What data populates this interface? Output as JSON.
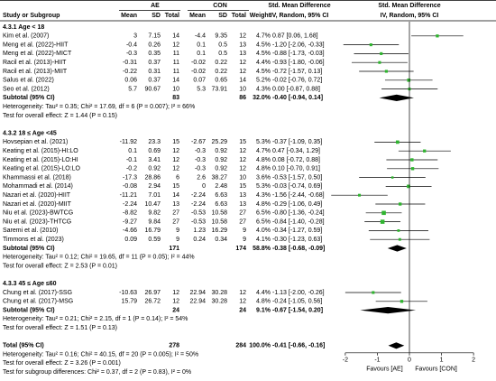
{
  "chart_data": {
    "type": "forest",
    "header": {
      "ae": "AE",
      "con": "CON",
      "effect_title": "Std. Mean Difference",
      "plot_title": "Std. Mean Difference",
      "study": "Study or Subgroup",
      "mean_ae": "Mean",
      "sd_ae": "SD",
      "total_ae": "Total",
      "mean_con": "Mean",
      "sd_con": "SD",
      "total_con": "Total",
      "weight": "Weight",
      "effect_method": "IV, Random, 95% CI",
      "plot_method": "IV, Random, 95% CI"
    },
    "xlim": [
      -2.7,
      2.7
    ],
    "xticks": [
      -2,
      -1,
      0,
      1,
      2
    ],
    "favours_left": "Favours [AE]",
    "favours_right": "Favours [CON]",
    "marker_color": "#2fb52f",
    "diamond_color": "#000000",
    "subgroups": [
      {
        "title": "4.3.1 Age < 18",
        "studies": [
          {
            "name": "Kim et al. (2007)",
            "ae": [
              3,
              7.15,
              14
            ],
            "con": [
              -4.4,
              9.35,
              12
            ],
            "weight": 4.7,
            "weight_label": "4.7%",
            "smd": 0.87,
            "ci": [
              0.06,
              1.68
            ],
            "ci_label": "0.87 [0.06, 1.68]"
          },
          {
            "name": "Meng et al. (2022)-HIIT",
            "ae": [
              -0.4,
              0.26,
              12
            ],
            "con": [
              0.1,
              0.5,
              13
            ],
            "weight": 4.5,
            "weight_label": "4.5%",
            "smd": -1.2,
            "ci": [
              -2.06,
              -0.33
            ],
            "ci_label": "-1.20 [-2.06, -0.33]"
          },
          {
            "name": "Meng et al. (2022)-MICT",
            "ae": [
              -0.3,
              0.35,
              11
            ],
            "con": [
              0.1,
              0.5,
              13
            ],
            "weight": 4.5,
            "weight_label": "4.5%",
            "smd": -0.88,
            "ci": [
              -1.73,
              -0.03
            ],
            "ci_label": "-0.88 [-1.73, -0.03]"
          },
          {
            "name": "Racil et al. (2013)-HIIT",
            "ae": [
              -0.31,
              0.37,
              11
            ],
            "con": [
              -0.02,
              0.22,
              12
            ],
            "weight": 4.4,
            "weight_label": "4.4%",
            "smd": -0.93,
            "ci": [
              -1.8,
              -0.06
            ],
            "ci_label": "-0.93 [-1.80, -0.06]"
          },
          {
            "name": "Racil et al. (2013)-MIIT",
            "ae": [
              -0.22,
              0.31,
              11
            ],
            "con": [
              -0.02,
              0.22,
              12
            ],
            "weight": 4.5,
            "weight_label": "4.5%",
            "smd": -0.72,
            "ci": [
              -1.57,
              0.13
            ],
            "ci_label": "-0.72 [-1.57, 0.13]"
          },
          {
            "name": "Salus et al. (2022)",
            "ae": [
              0.06,
              0.37,
              14
            ],
            "con": [
              0.07,
              0.65,
              14
            ],
            "weight": 5.2,
            "weight_label": "5.2%",
            "smd": -0.02,
            "ci": [
              -0.76,
              0.72
            ],
            "ci_label": "-0.02 [-0.76, 0.72]"
          },
          {
            "name": "Seo et al. (2012)",
            "ae": [
              5.7,
              90.67,
              10
            ],
            "con": [
              5.3,
              73.91,
              10
            ],
            "weight": 4.3,
            "weight_label": "4.3%",
            "smd": 0.0,
            "ci": [
              -0.87,
              0.88
            ],
            "ci_label": "0.00 [-0.87, 0.88]"
          }
        ],
        "subtotal": {
          "label": "Subtotal (95% CI)",
          "ae_total": 83,
          "con_total": 86,
          "weight_label": "32.0%",
          "smd": -0.4,
          "ci": [
            -0.94,
            0.14
          ],
          "ci_label": "-0.40 [-0.94, 0.14]"
        },
        "heterogeneity": "Heterogeneity: Tau² = 0.35; Chi² = 17.69, df = 6 (P = 0.007); I² = 66%",
        "overall": "Test for overall effect: Z = 1.44 (P = 0.15)"
      },
      {
        "title": "4.3.2 18 ≤ Age <45",
        "studies": [
          {
            "name": "Hovsepian et al. (2021)",
            "ae": [
              -11.92,
              23.3,
              15
            ],
            "con": [
              -2.67,
              25.29,
              15
            ],
            "weight": 5.3,
            "weight_label": "5.3%",
            "smd": -0.37,
            "ci": [
              -1.09,
              0.35
            ],
            "ci_label": "-0.37 [-1.09, 0.35]"
          },
          {
            "name": "Keating et al. (2015)-HI:LO",
            "ae": [
              0.1,
              0.69,
              12
            ],
            "con": [
              -0.3,
              0.92,
              12
            ],
            "weight": 4.7,
            "weight_label": "4.7%",
            "smd": 0.47,
            "ci": [
              -0.34,
              1.29
            ],
            "ci_label": "0.47 [-0.34, 1.29]"
          },
          {
            "name": "Keating et al. (2015)-LO:HI",
            "ae": [
              -0.1,
              3.41,
              12
            ],
            "con": [
              -0.3,
              0.92,
              12
            ],
            "weight": 4.8,
            "weight_label": "4.8%",
            "smd": 0.08,
            "ci": [
              -0.72,
              0.88
            ],
            "ci_label": "0.08 [-0.72, 0.88]"
          },
          {
            "name": "Keating et al. (2015)-LO:LO",
            "ae": [
              -0.2,
              0.92,
              12
            ],
            "con": [
              -0.3,
              0.92,
              12
            ],
            "weight": 4.8,
            "weight_label": "4.8%",
            "smd": 0.1,
            "ci": [
              -0.7,
              0.91
            ],
            "ci_label": "0.10 [-0.70, 0.91]"
          },
          {
            "name": "Khammassi et al. (2018)",
            "ae": [
              -17.3,
              28.86,
              6
            ],
            "con": [
              2.6,
              38.27,
              10
            ],
            "weight": 3.6,
            "weight_label": "3.6%",
            "smd": -0.53,
            "ci": [
              -1.57,
              0.5
            ],
            "ci_label": "-0.53 [-1.57, 0.50]"
          },
          {
            "name": "Mohammadi et al. (2014)",
            "ae": [
              -0.08,
              2.94,
              15
            ],
            "con": [
              0,
              2.48,
              15
            ],
            "weight": 5.3,
            "weight_label": "5.3%",
            "smd": -0.03,
            "ci": [
              -0.74,
              0.69
            ],
            "ci_label": "-0.03 [-0.74, 0.69]"
          },
          {
            "name": "Nazari et al. (2020)-HIIT",
            "ae": [
              -11.21,
              7.01,
              14
            ],
            "con": [
              -2.24,
              6.63,
              13
            ],
            "weight": 4.3,
            "weight_label": "4.3%",
            "smd": -1.56,
            "ci": [
              -2.44,
              -0.68
            ],
            "ci_label": "-1.56 [-2.44, -0.68]"
          },
          {
            "name": "Nazari et al. (2020)-MIIT",
            "ae": [
              -2.24,
              10.47,
              13
            ],
            "con": [
              -2.24,
              6.63,
              13
            ],
            "weight": 4.8,
            "weight_label": "4.8%",
            "smd": -0.29,
            "ci": [
              -1.06,
              0.49
            ],
            "ci_label": "-0.29 [-1.06, 0.49]"
          },
          {
            "name": "Niu et al. (2023)-BWTCG",
            "ae": [
              -8.82,
              9.82,
              27
            ],
            "con": [
              -0.53,
              10.58,
              27
            ],
            "weight": 6.5,
            "weight_label": "6.5%",
            "smd": -0.8,
            "ci": [
              -1.36,
              -0.24
            ],
            "ci_label": "-0.80 [-1.36, -0.24]"
          },
          {
            "name": "Niu et al. (2023)-THTCG",
            "ae": [
              -9.27,
              9.84,
              27
            ],
            "con": [
              -0.53,
              10.58,
              27
            ],
            "weight": 6.5,
            "weight_label": "6.5%",
            "smd": -0.84,
            "ci": [
              -1.4,
              -0.28
            ],
            "ci_label": "-0.84 [-1.40, -0.28]"
          },
          {
            "name": "Saremi et al. (2010)",
            "ae": [
              -4.66,
              16.79,
              9
            ],
            "con": [
              1.23,
              16.29,
              9
            ],
            "weight": 4.0,
            "weight_label": "4.0%",
            "smd": -0.34,
            "ci": [
              -1.27,
              0.59
            ],
            "ci_label": "-0.34 [-1.27, 0.59]"
          },
          {
            "name": "Timmons et al. (2023)",
            "ae": [
              0.09,
              0.59,
              9
            ],
            "con": [
              0.24,
              0.34,
              9
            ],
            "weight": 4.1,
            "weight_label": "4.1%",
            "smd": -0.3,
            "ci": [
              -1.23,
              0.63
            ],
            "ci_label": "-0.30 [-1.23, 0.63]"
          }
        ],
        "subtotal": {
          "label": "Subtotal (95% CI)",
          "ae_total": 171,
          "con_total": 174,
          "weight_label": "58.8%",
          "smd": -0.38,
          "ci": [
            -0.68,
            -0.09
          ],
          "ci_label": "-0.38 [-0.68, -0.09]"
        },
        "heterogeneity": "Heterogeneity: Tau² = 0.12; Chi² = 19.65, df = 11 (P = 0.05); I² = 44%",
        "overall": "Test for overall effect: Z = 2.53 (P = 0.01)"
      },
      {
        "title": "4.3.3 45 ≤ Age ≤60",
        "studies": [
          {
            "name": "Chung et al. (2017)-SSG",
            "ae": [
              -10.63,
              26.97,
              12
            ],
            "con": [
              22.94,
              30.28,
              12
            ],
            "weight": 4.4,
            "weight_label": "4.4%",
            "smd": -1.13,
            "ci": [
              -2.0,
              -0.26
            ],
            "ci_label": "-1.13 [-2.00, -0.26]"
          },
          {
            "name": "Chung et al. (2017)-MSG",
            "ae": [
              15.79,
              26.72,
              12
            ],
            "con": [
              22.94,
              30.28,
              12
            ],
            "weight": 4.8,
            "weight_label": "4.8%",
            "smd": -0.24,
            "ci": [
              -1.05,
              0.56
            ],
            "ci_label": "-0.24 [-1.05, 0.56]"
          }
        ],
        "subtotal": {
          "label": "Subtotal (95% CI)",
          "ae_total": 24,
          "con_total": 24,
          "weight_label": "9.1%",
          "smd": -0.67,
          "ci": [
            -1.54,
            0.2
          ],
          "ci_label": "-0.67 [-1.54, 0.20]"
        },
        "heterogeneity": "Heterogeneity: Tau² = 0.21; Chi² = 2.15, df = 1 (P = 0.14); I² = 54%",
        "overall": "Test for overall effect: Z = 1.51 (P = 0.13)"
      }
    ],
    "total": {
      "label": "Total (95% CI)",
      "ae_total": 278,
      "con_total": 284,
      "weight_label": "100.0%",
      "smd": -0.41,
      "ci": [
        -0.66,
        -0.16
      ],
      "ci_label": "-0.41 [-0.66, -0.16]"
    },
    "heterogeneity": "Heterogeneity: Tau² = 0.16; Chi² = 40.15, df = 20 (P = 0.005); I² = 50%",
    "overall": "Test for overall effect: Z = 3.26 (P = 0.001)",
    "subgroup_differences": "Test for subgroup differences: Chi² = 0.37, df = 2 (P = 0.83), I² = 0%"
  }
}
